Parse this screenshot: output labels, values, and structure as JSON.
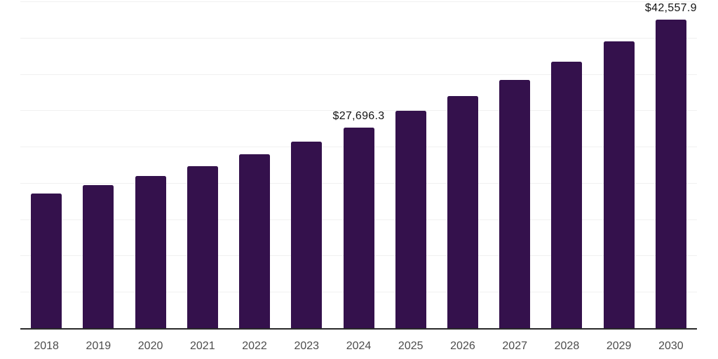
{
  "chart_data": {
    "type": "bar",
    "title": "",
    "xlabel": "",
    "ylabel": "",
    "legend": "none",
    "grid": "horizontal",
    "background": "#ffffff",
    "categories": [
      "2018",
      "2019",
      "2020",
      "2021",
      "2022",
      "2023",
      "2024",
      "2025",
      "2026",
      "2027",
      "2028",
      "2029",
      "2030"
    ],
    "values": [
      18600,
      19750,
      21000,
      22400,
      24000,
      25750,
      27696.3,
      30000,
      32000,
      34250,
      36750,
      39550,
      42557.9
    ],
    "data_labels": {
      "2024": "$27,696.3",
      "2030": "$42,557.9"
    },
    "ylim": [
      0,
      45000
    ],
    "ytick_interval": 5000,
    "y_axis_labels_shown": false,
    "colors": {
      "bar": "#34114c",
      "axis": "#2a2a2a",
      "gridline": "#f0f0f0",
      "x_label_text": "#4c4c4c",
      "data_label_text": "#141414"
    }
  }
}
